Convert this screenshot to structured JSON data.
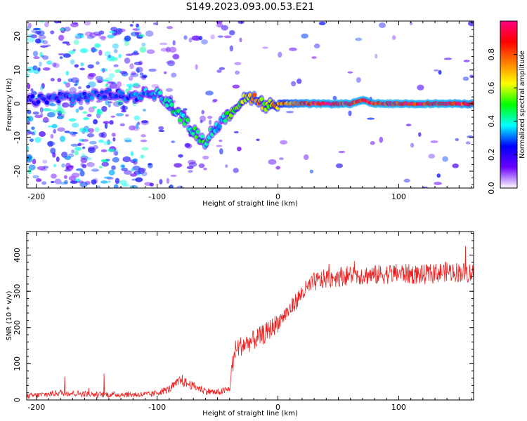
{
  "title": "S149.2023.093.00.53.E21",
  "chart_data": [
    {
      "type": "heatmap",
      "xlabel": "Height of straight line (km)",
      "ylabel": "Frequency (Hz)",
      "xlim": [
        -208,
        162
      ],
      "ylim": [
        -25,
        24.5
      ],
      "xticks": [
        -200,
        -100,
        0,
        100
      ],
      "yticks": [
        -20,
        -10,
        0,
        10,
        20
      ],
      "colorbar": {
        "label": "Normalized spectral amplitude",
        "range": [
          0,
          1
        ],
        "ticks": [
          "0.0",
          "0.2",
          "0.4",
          "0.6",
          "0.8"
        ],
        "colors": [
          "#ffffff",
          "#6a00ff",
          "#0000ff",
          "#00ffff",
          "#00ff00",
          "#ffff00",
          "#ff8000",
          "#ff0000",
          "#ff0080"
        ]
      },
      "ridge": {
        "x": [
          -200,
          -180,
          -160,
          -140,
          -120,
          -110,
          -100,
          -90,
          -80,
          -70,
          -60,
          -55,
          -50,
          -45,
          -40,
          -30,
          -20,
          -15,
          -10,
          -5,
          0,
          20,
          40,
          60,
          70,
          80,
          100,
          120,
          140,
          162
        ],
        "freq": [
          1,
          2,
          2,
          3,
          2,
          3,
          3,
          0,
          -4,
          -8,
          -12,
          -8,
          -7,
          -5,
          -3,
          1,
          2,
          1,
          -1,
          0,
          0,
          0,
          0,
          0,
          1,
          0,
          0,
          0,
          0,
          0
        ],
        "amp": [
          0.25,
          0.3,
          0.3,
          0.3,
          0.3,
          0.35,
          0.4,
          0.45,
          0.45,
          0.5,
          0.5,
          0.4,
          0.4,
          0.4,
          0.5,
          0.6,
          0.8,
          0.7,
          0.6,
          0.7,
          0.75,
          0.9,
          0.95,
          0.95,
          0.95,
          0.95,
          0.95,
          0.95,
          0.95,
          0.9
        ]
      }
    },
    {
      "type": "line",
      "xlabel": "Height of straight line (km)",
      "ylabel": "SNR (10 * v/v)",
      "xlim": [
        -208,
        162
      ],
      "ylim": [
        0,
        465
      ],
      "xticks": [
        -200,
        -100,
        0,
        100
      ],
      "yticks": [
        0,
        100,
        200,
        300,
        400
      ],
      "color": "#ee2222",
      "series": {
        "x": [
          -208,
          -180,
          -150,
          -120,
          -105,
          -90,
          -80,
          -75,
          -60,
          -50,
          -40,
          -38,
          -35,
          -30,
          -20,
          -10,
          0,
          10,
          20,
          30,
          40,
          60,
          80,
          100,
          120,
          140,
          162
        ],
        "y": [
          10,
          20,
          15,
          15,
          15,
          30,
          55,
          45,
          25,
          20,
          30,
          90,
          140,
          150,
          165,
          185,
          215,
          250,
          295,
          325,
          335,
          345,
          345,
          350,
          345,
          355,
          350
        ]
      }
    }
  ]
}
